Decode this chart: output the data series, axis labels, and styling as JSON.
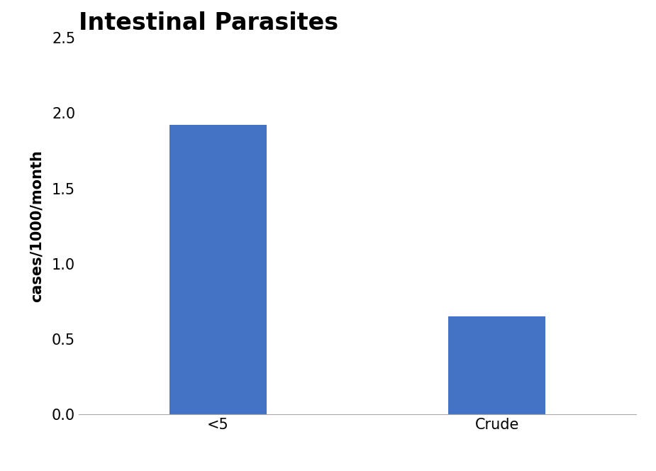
{
  "title": "Intestinal Parasites",
  "categories": [
    "<5",
    "Crude"
  ],
  "values": [
    1.92,
    0.65
  ],
  "bar_color": "#4472C4",
  "ylabel": "cases/1000/month",
  "ylim": [
    0,
    2.5
  ],
  "yticks": [
    0.0,
    0.5,
    1.0,
    1.5,
    2.0,
    2.5
  ],
  "title_fontsize": 24,
  "ylabel_fontsize": 15,
  "tick_fontsize": 15,
  "background_color": "#ffffff",
  "bar_width": 0.35,
  "xlim": [
    -0.5,
    1.5
  ]
}
